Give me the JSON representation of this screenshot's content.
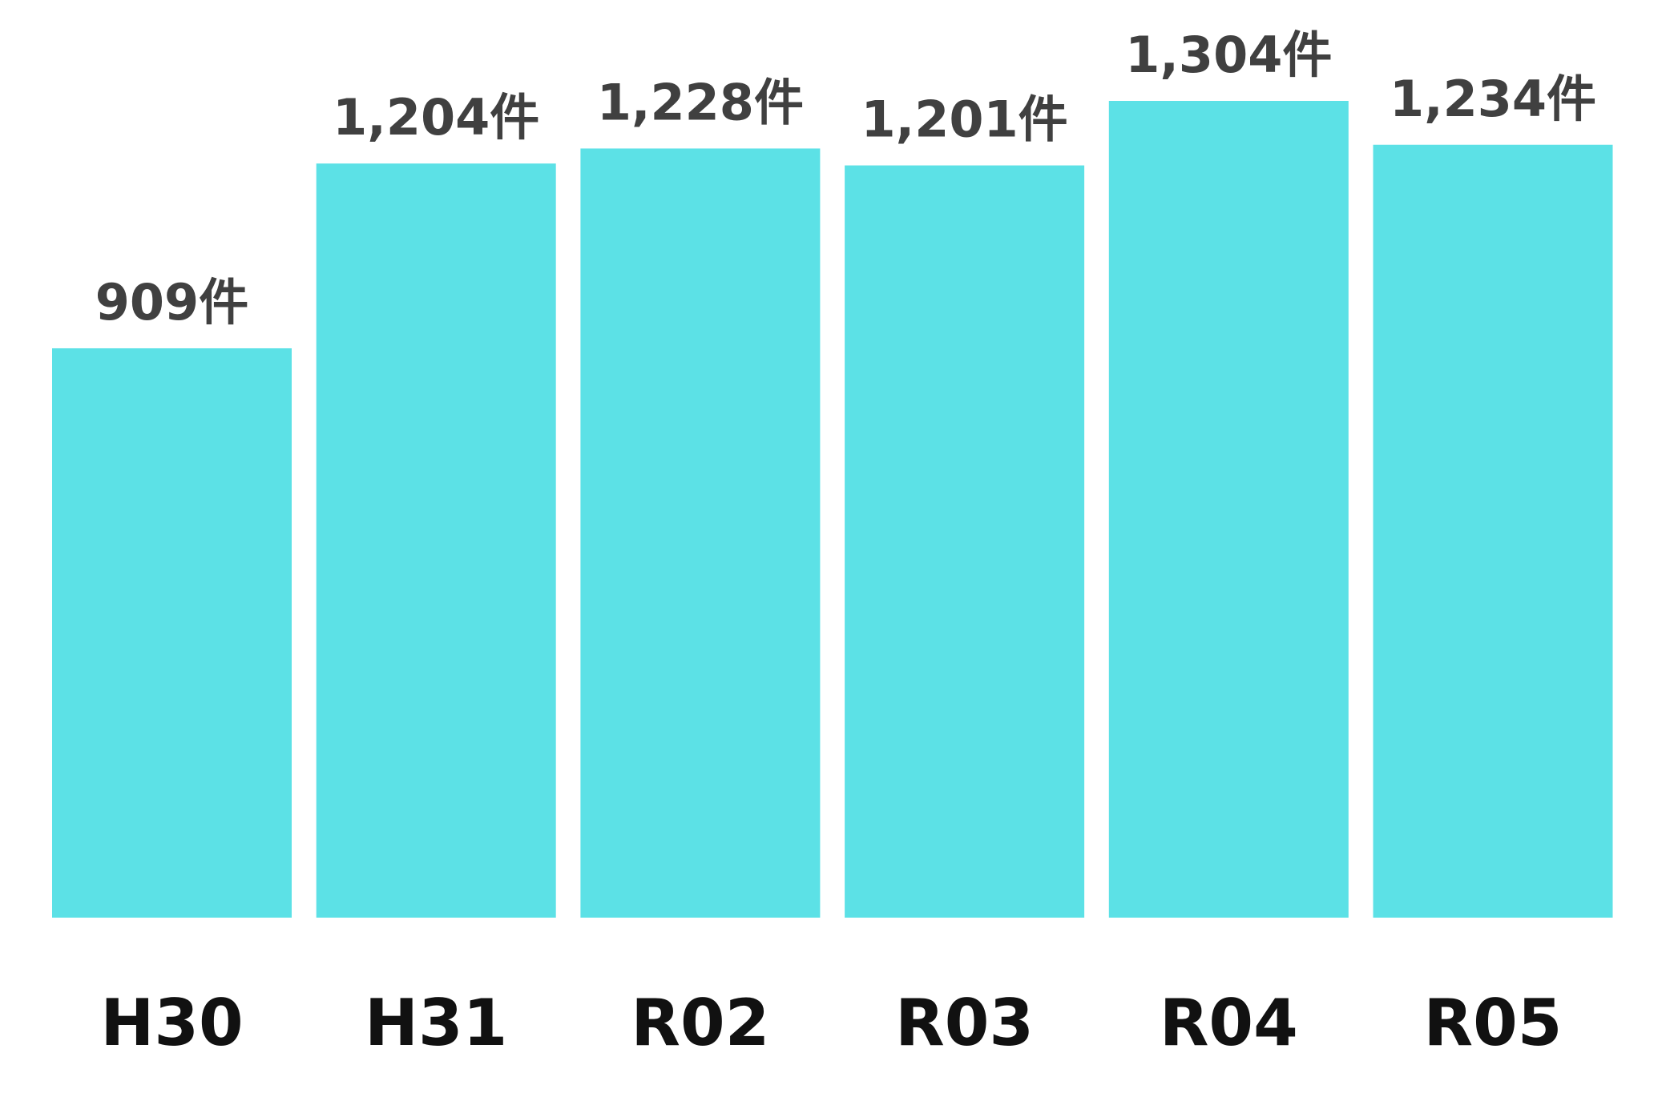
{
  "chart_data": {
    "type": "bar",
    "categories": [
      "H30",
      "H31",
      "R02",
      "R03",
      "R04",
      "R05"
    ],
    "values": [
      909,
      1204,
      1228,
      1201,
      1304,
      1234
    ],
    "value_labels": [
      "909件",
      "1,204件",
      "1,228件",
      "1,201件",
      "1,304件",
      "1,234件"
    ],
    "color": "#5ce1e6"
  }
}
